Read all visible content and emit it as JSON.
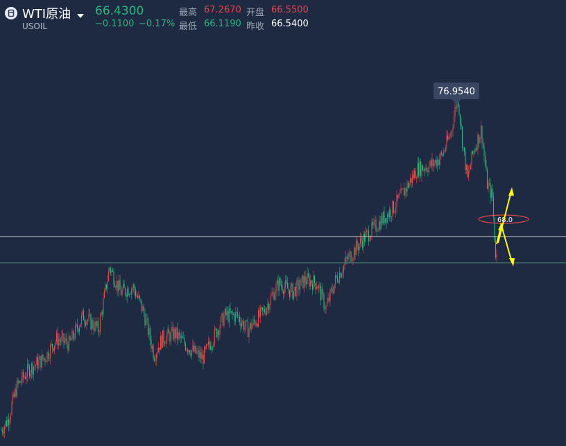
{
  "symbol": {
    "name": "WTI原油",
    "code": "USOIL",
    "price": "66.4300",
    "change_abs": "−0.1100",
    "change_pct": "−0.17%"
  },
  "stats": {
    "high_label": "最高",
    "high_value": "67.2670",
    "open_label": "开盘",
    "open_value": "66.5500",
    "low_label": "最低",
    "low_value": "66.1190",
    "prev_close_label": "昨收",
    "prev_close_value": "66.5400"
  },
  "colors": {
    "up": "#e2474c",
    "down": "#2fb57f",
    "background": "#1e2a42",
    "annotation": "#ffff00"
  },
  "chart_data": {
    "type": "candlestick",
    "title": "",
    "xlabel": "",
    "ylabel": "",
    "ylim": [
      56.3,
      78.9
    ],
    "grid": false,
    "max_marker": "76.9540",
    "annotation_level": "68.0",
    "horizontal_lines": [
      68.0,
      66.54
    ],
    "trend_path": [
      [
        0,
        57.2
      ],
      [
        10,
        57.8
      ],
      [
        22,
        59.6
      ],
      [
        40,
        60.6
      ],
      [
        62,
        61.2
      ],
      [
        80,
        62.3
      ],
      [
        98,
        62.0
      ],
      [
        118,
        63.6
      ],
      [
        140,
        62.8
      ],
      [
        156,
        66.3
      ],
      [
        172,
        64.9
      ],
      [
        190,
        65.2
      ],
      [
        205,
        63.8
      ],
      [
        220,
        61.4
      ],
      [
        232,
        62.3
      ],
      [
        250,
        62.6
      ],
      [
        270,
        61.8
      ],
      [
        290,
        61.2
      ],
      [
        305,
        62.3
      ],
      [
        322,
        63.6
      ],
      [
        340,
        63.6
      ],
      [
        355,
        62.8
      ],
      [
        378,
        63.8
      ],
      [
        400,
        65.4
      ],
      [
        420,
        64.9
      ],
      [
        438,
        65.6
      ],
      [
        455,
        65.4
      ],
      [
        468,
        64.0
      ],
      [
        482,
        65.6
      ],
      [
        500,
        66.8
      ],
      [
        520,
        67.8
      ],
      [
        545,
        68.8
      ],
      [
        565,
        69.6
      ],
      [
        580,
        70.5
      ],
      [
        600,
        71.8
      ],
      [
        620,
        72.0
      ],
      [
        635,
        72.5
      ],
      [
        648,
        73.8
      ],
      [
        658,
        75.9
      ],
      [
        665,
        73.2
      ],
      [
        672,
        71.2
      ],
      [
        680,
        72.7
      ],
      [
        692,
        74.0
      ],
      [
        700,
        71.0
      ],
      [
        708,
        70.2
      ],
      [
        712,
        67.2
      ],
      [
        716,
        66.6
      ]
    ]
  }
}
